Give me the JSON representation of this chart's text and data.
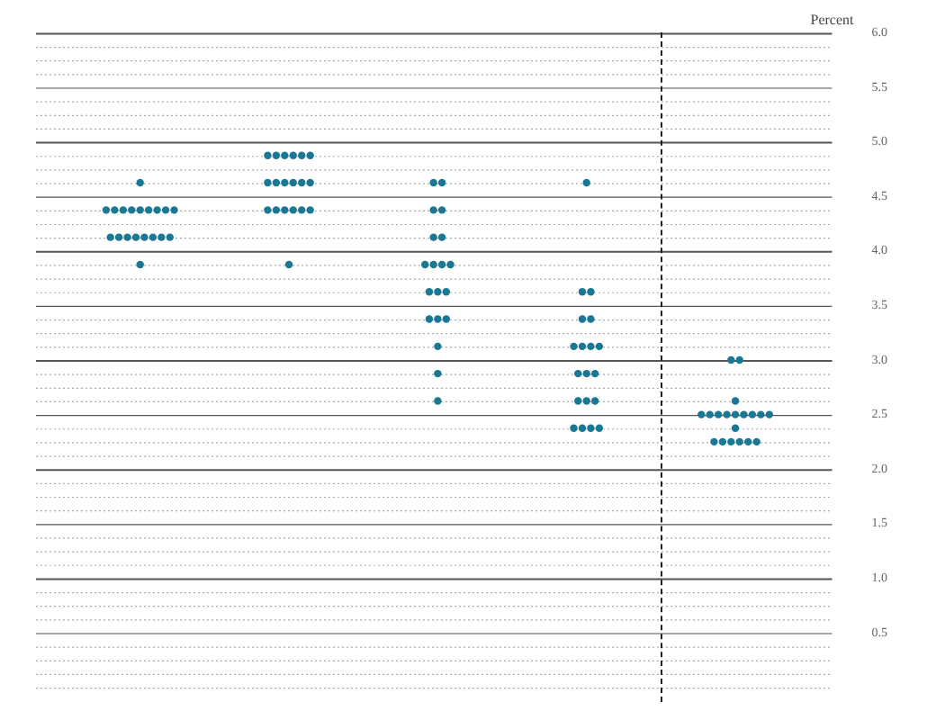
{
  "chart_data": {
    "type": "scatter",
    "ylabel": "Percent",
    "categories": [
      null,
      null,
      null,
      null,
      null
    ],
    "series": [
      {
        "color": "#1b7894",
        "values": [
          4.625,
          4.875,
          4.625,
          4.625,
          3.0
        ]
      },
      {
        "color": "#1b7894",
        "values": [
          4.375,
          4.875,
          4.625,
          3.625,
          3.0
        ]
      },
      {
        "color": "#1b7894",
        "values": [
          4.375,
          4.875,
          4.375,
          3.625,
          2.625
        ]
      },
      {
        "color": "#1b7894",
        "values": [
          4.375,
          4.875,
          4.375,
          3.375,
          2.5
        ]
      },
      {
        "color": "#1b7894",
        "values": [
          4.375,
          4.875,
          4.125,
          3.375,
          2.5
        ]
      },
      {
        "color": "#1b7894",
        "values": [
          4.375,
          4.875,
          4.125,
          3.125,
          2.5
        ]
      },
      {
        "color": "#1b7894",
        "values": [
          4.375,
          4.625,
          3.875,
          3.125,
          2.5
        ]
      },
      {
        "color": "#1b7894",
        "values": [
          4.375,
          4.625,
          3.875,
          3.125,
          2.5
        ]
      },
      {
        "color": "#1b7894",
        "values": [
          4.375,
          4.625,
          3.875,
          3.125,
          2.5
        ]
      },
      {
        "color": "#1b7894",
        "values": [
          4.375,
          4.625,
          3.875,
          2.875,
          2.5
        ]
      },
      {
        "color": "#1b7894",
        "values": [
          4.125,
          4.625,
          3.625,
          2.875,
          2.5
        ]
      },
      {
        "color": "#1b7894",
        "values": [
          4.125,
          4.625,
          3.625,
          2.875,
          2.5
        ]
      },
      {
        "color": "#1b7894",
        "values": [
          4.125,
          4.375,
          3.625,
          2.625,
          2.375
        ]
      },
      {
        "color": "#1b7894",
        "values": [
          4.125,
          4.375,
          3.375,
          2.625,
          2.25
        ]
      },
      {
        "color": "#1b7894",
        "values": [
          4.125,
          4.375,
          3.375,
          2.625,
          2.25
        ]
      },
      {
        "color": "#1b7894",
        "values": [
          4.125,
          4.375,
          3.375,
          2.375,
          2.25
        ]
      },
      {
        "color": "#1b7894",
        "values": [
          4.125,
          4.375,
          3.125,
          2.375,
          2.25
        ]
      },
      {
        "color": "#1b7894",
        "values": [
          4.125,
          4.375,
          2.875,
          2.375,
          2.25
        ]
      },
      {
        "color": "#1b7894",
        "values": [
          3.875,
          3.875,
          2.625,
          2.375,
          2.25
        ]
      }
    ],
    "ylim": [
      0,
      6
    ],
    "yticks": [
      {
        "value": 0,
        "label": null
      },
      {
        "value": 0.125,
        "label": null
      },
      {
        "value": 0.25,
        "label": null
      },
      {
        "value": 0.375,
        "label": null
      },
      {
        "value": 0.5,
        "label": "0.5"
      },
      {
        "value": 0.625,
        "label": null
      },
      {
        "value": 0.75,
        "label": null
      },
      {
        "value": 0.875,
        "label": null
      },
      {
        "value": 1,
        "label": "1.0"
      },
      {
        "value": 1.125,
        "label": null
      },
      {
        "value": 1.25,
        "label": null
      },
      {
        "value": 1.375,
        "label": null
      },
      {
        "value": 1.5,
        "label": "1.5"
      },
      {
        "value": 1.625,
        "label": null
      },
      {
        "value": 1.75,
        "label": null
      },
      {
        "value": 1.875,
        "label": null
      },
      {
        "value": 2,
        "label": "2.0"
      },
      {
        "value": 2.125,
        "label": null
      },
      {
        "value": 2.25,
        "label": null
      },
      {
        "value": 2.375,
        "label": null
      },
      {
        "value": 2.5,
        "label": "2.5"
      },
      {
        "value": 2.625,
        "label": null
      },
      {
        "value": 2.75,
        "label": null
      },
      {
        "value": 2.875,
        "label": null
      },
      {
        "value": 3,
        "label": "3.0"
      },
      {
        "value": 3.125,
        "label": null
      },
      {
        "value": 3.25,
        "label": null
      },
      {
        "value": 3.375,
        "label": null
      },
      {
        "value": 3.5,
        "label": "3.5"
      },
      {
        "value": 3.625,
        "label": null
      },
      {
        "value": 3.75,
        "label": null
      },
      {
        "value": 3.875,
        "label": null
      },
      {
        "value": 4,
        "label": "4.0"
      },
      {
        "value": 4.125,
        "label": null
      },
      {
        "value": 4.25,
        "label": null
      },
      {
        "value": 4.375,
        "label": null
      },
      {
        "value": 4.5,
        "label": "4.5"
      },
      {
        "value": 4.625,
        "label": null
      },
      {
        "value": 4.75,
        "label": null
      },
      {
        "value": 4.875,
        "label": null
      },
      {
        "value": 5,
        "label": "5.0"
      },
      {
        "value": 5.125,
        "label": null
      },
      {
        "value": 5.25,
        "label": null
      },
      {
        "value": 5.375,
        "label": null
      },
      {
        "value": 5.5,
        "label": "5.5"
      },
      {
        "value": 5.625,
        "label": null
      },
      {
        "value": 5.75,
        "label": null
      },
      {
        "value": 5.875,
        "label": null
      },
      {
        "value": 6,
        "label": "6.0"
      }
    ],
    "grid": true,
    "legend": false,
    "marker": "circle",
    "tick_labels": "y"
  }
}
